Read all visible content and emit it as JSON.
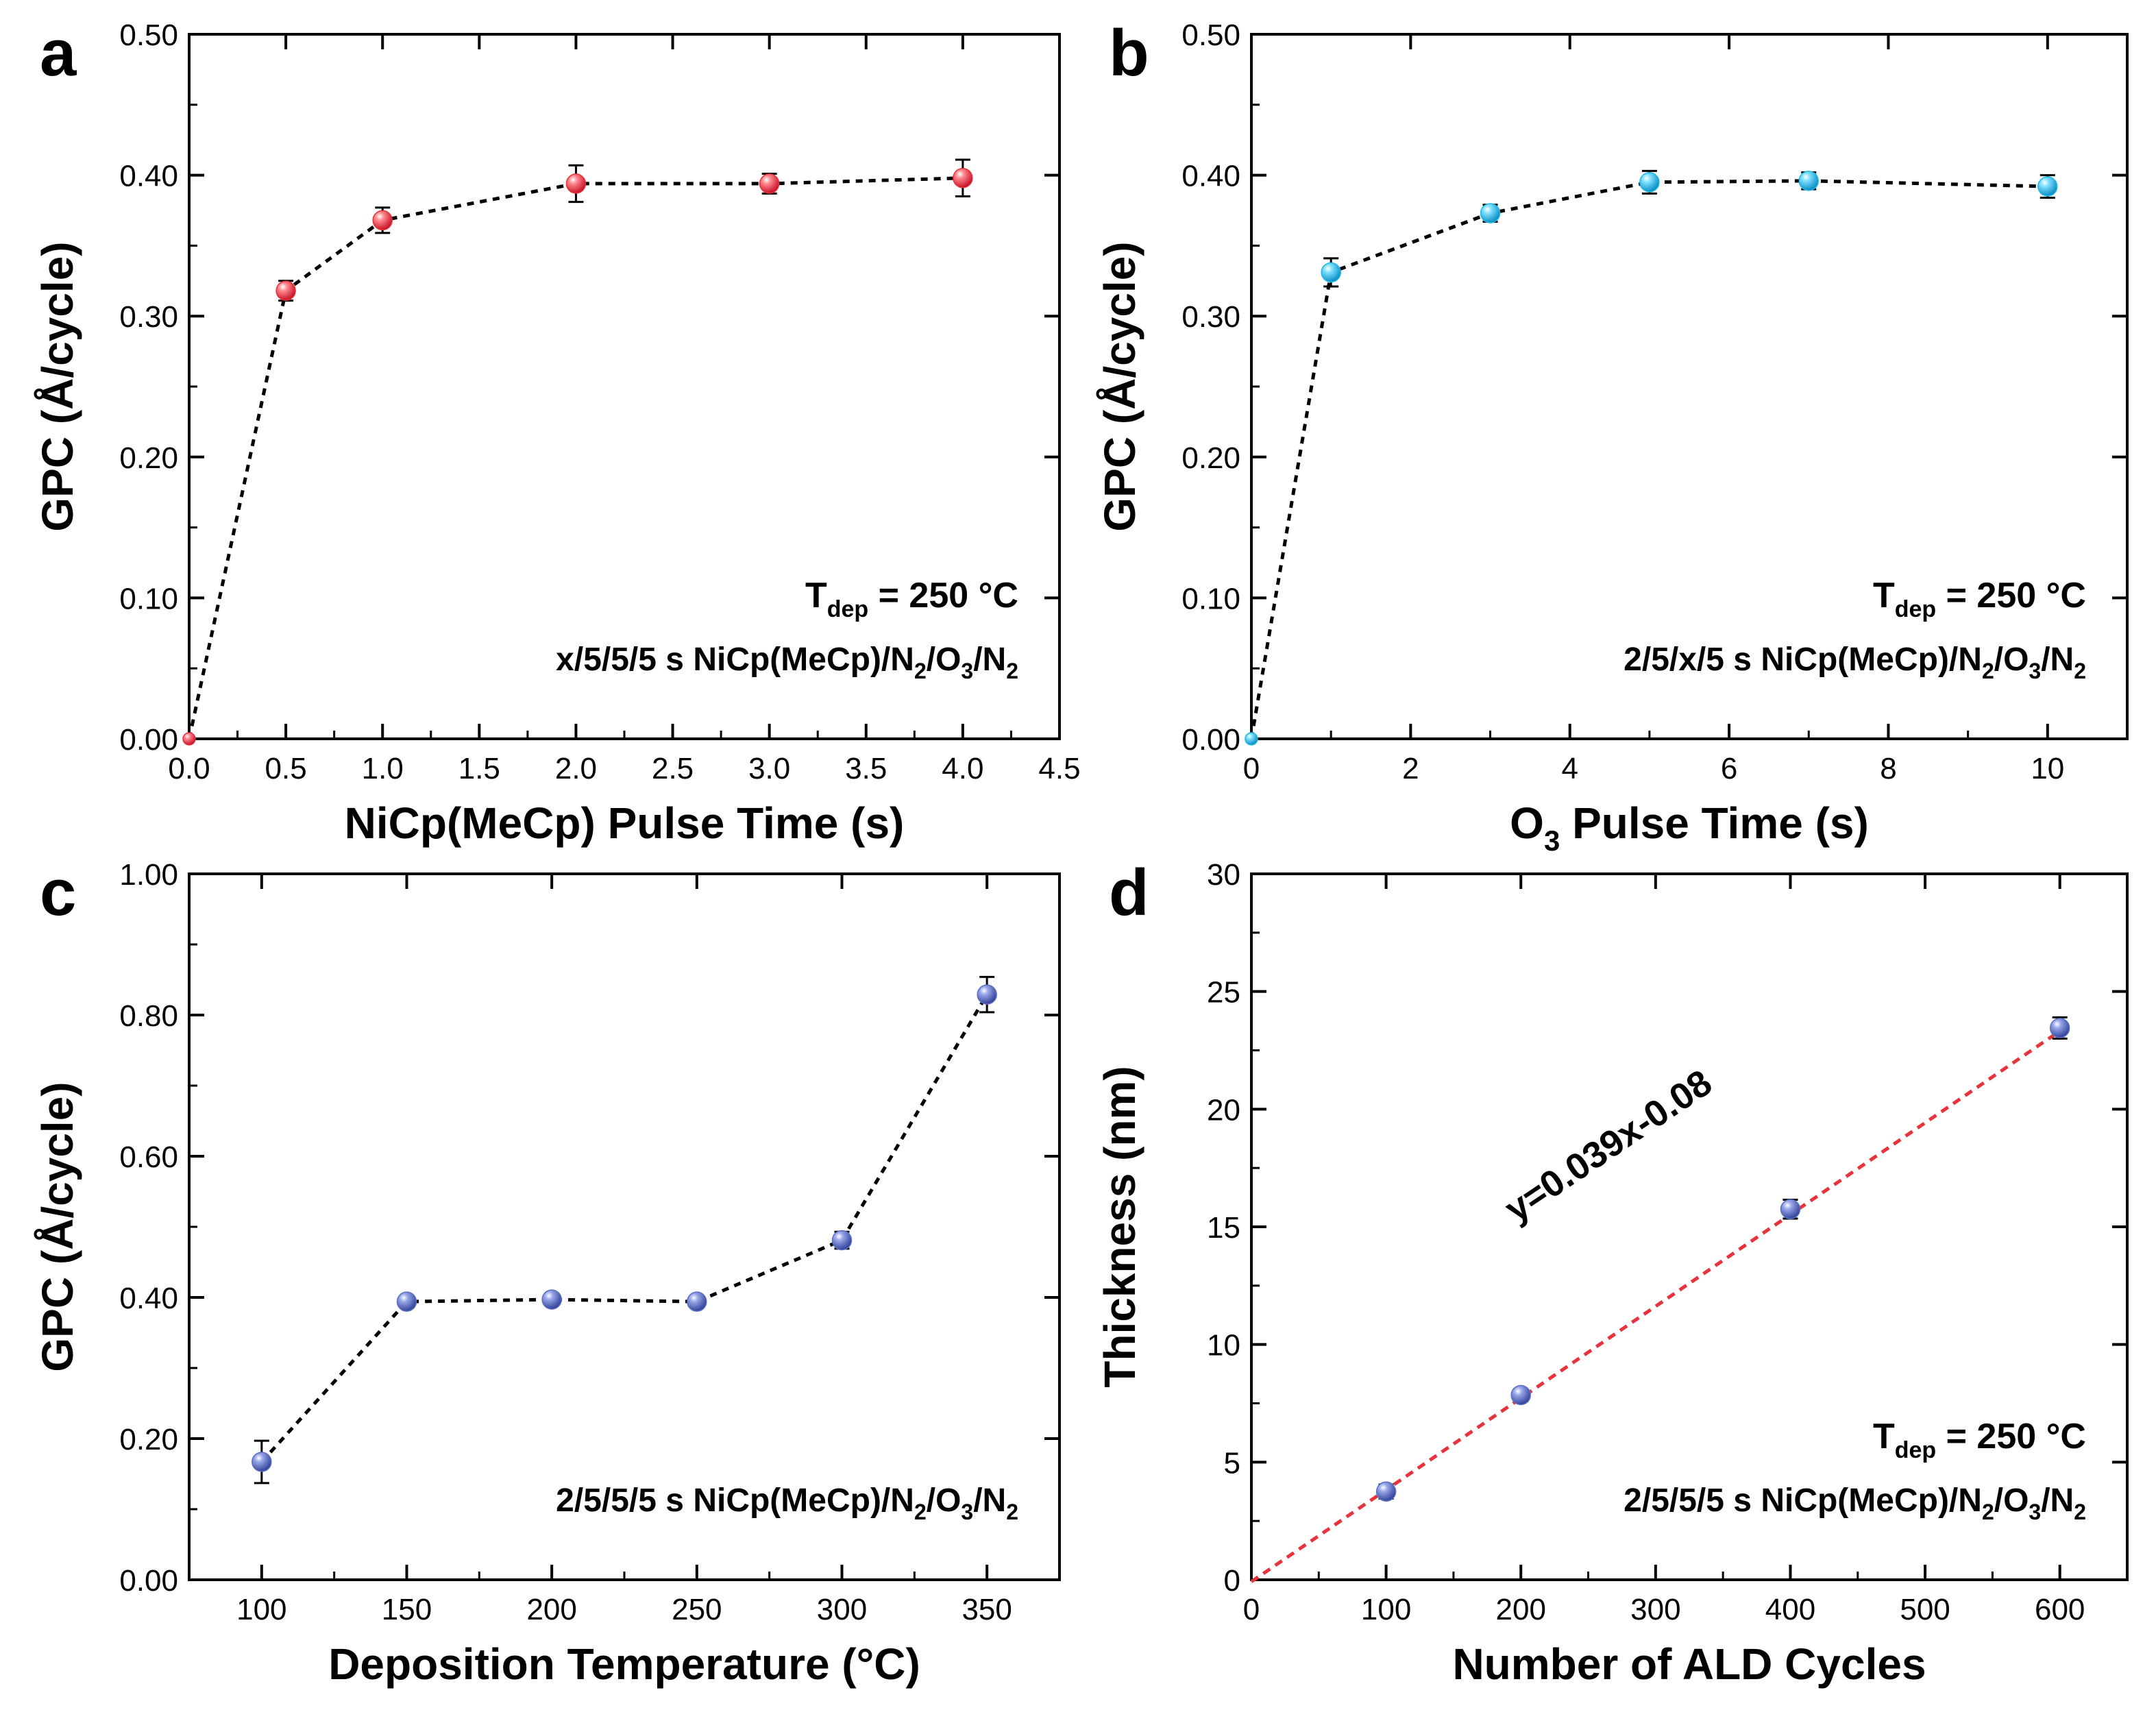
{
  "chart_data": [
    {
      "panel": "a",
      "type": "scatter",
      "connected": "dotted-line",
      "x": [
        0.0,
        0.5,
        1.0,
        2.0,
        3.0,
        4.0
      ],
      "y": [
        0.0,
        0.318,
        0.368,
        0.394,
        0.394,
        0.398
      ],
      "yerr": [
        0,
        0.007,
        0.009,
        0.013,
        0.007,
        0.013
      ],
      "xlim": [
        0.0,
        4.5
      ],
      "ylim": [
        0.0,
        0.5
      ],
      "xticks": [
        0.0,
        0.5,
        1.0,
        1.5,
        2.0,
        2.5,
        3.0,
        3.5,
        4.0,
        4.5
      ],
      "xtick_labels": [
        "0.0",
        "0.5",
        "1.0",
        "1.5",
        "2.0",
        "2.5",
        "3.0",
        "3.5",
        "4.0",
        "4.5"
      ],
      "yticks": [
        0.0,
        0.1,
        0.2,
        0.3,
        0.4,
        0.5
      ],
      "ytick_labels": [
        "0.00",
        "0.10",
        "0.20",
        "0.30",
        "0.40",
        "0.50"
      ],
      "xlabel": "NiCp(MeCp) Pulse Time (s)",
      "ylabel": "GPC (Å/cycle)",
      "annotation_line1": {
        "main": "T",
        "sub": "dep",
        "rest": " = 250 °C"
      },
      "annotation_line2": {
        "a": "x/5/5/5 s NiCp(MeCp)/N",
        "s1": "2",
        "b": "/O",
        "s2": "3",
        "c": "/N",
        "s3": "2"
      },
      "marker_color": "#e8323c",
      "line_color": "#000000"
    },
    {
      "panel": "b",
      "type": "scatter",
      "connected": "dotted-line",
      "x": [
        0,
        1,
        3,
        5,
        7,
        10
      ],
      "y": [
        0.0,
        0.331,
        0.373,
        0.395,
        0.396,
        0.392
      ],
      "yerr": [
        0,
        0.01,
        0.006,
        0.008,
        0.006,
        0.008
      ],
      "xlim": [
        0,
        11
      ],
      "ylim": [
        0.0,
        0.5
      ],
      "xticks": [
        0,
        2,
        4,
        6,
        8,
        10
      ],
      "xtick_labels": [
        "0",
        "2",
        "4",
        "6",
        "8",
        "10"
      ],
      "yticks": [
        0.0,
        0.1,
        0.2,
        0.3,
        0.4,
        0.5
      ],
      "ytick_labels": [
        "0.00",
        "0.10",
        "0.20",
        "0.30",
        "0.40",
        "0.50"
      ],
      "xlabel": {
        "a": "O",
        "sub": "3",
        "b": " Pulse Time (s)"
      },
      "ylabel": "GPC (Å/cycle)",
      "annotation_line1": {
        "main": "T",
        "sub": "dep",
        "rest": " = 250 °C"
      },
      "annotation_line2": {
        "a": "2/5/x/5 s NiCp(MeCp)/N",
        "s1": "2",
        "b": "/O",
        "s2": "3",
        "c": "/N",
        "s3": "2"
      },
      "marker_color": "#1fb8e6",
      "line_color": "#000000"
    },
    {
      "panel": "c",
      "type": "scatter",
      "connected": "dotted-line",
      "x": [
        100,
        150,
        200,
        250,
        300,
        350
      ],
      "y": [
        0.167,
        0.394,
        0.397,
        0.394,
        0.481,
        0.829
      ],
      "yerr": [
        0.03,
        0.006,
        0.006,
        0.006,
        0.012,
        0.025
      ],
      "xlim": [
        75,
        375
      ],
      "ylim": [
        0.0,
        1.0
      ],
      "xticks": [
        100,
        150,
        200,
        250,
        300,
        350
      ],
      "xtick_labels": [
        "100",
        "150",
        "200",
        "250",
        "300",
        "350"
      ],
      "yticks": [
        0.0,
        0.2,
        0.4,
        0.6,
        0.8,
        1.0
      ],
      "ytick_labels": [
        "0.00",
        "0.20",
        "0.40",
        "0.60",
        "0.80",
        "1.00"
      ],
      "xlabel": "Deposition Temperature (°C)",
      "ylabel": "GPC (Å/cycle)",
      "annotation_line1": null,
      "annotation_line2": {
        "a": "2/5/5/5 s NiCp(MeCp)/N",
        "s1": "2",
        "b": "/O",
        "s2": "3",
        "c": "/N",
        "s3": "2"
      },
      "marker_color": "#5b6fc4",
      "line_color": "#000000"
    },
    {
      "panel": "d",
      "type": "scatter",
      "connected": "linear-fit",
      "x": [
        100,
        200,
        400,
        600
      ],
      "y": [
        3.75,
        7.85,
        15.75,
        23.45
      ],
      "yerr": [
        0.3,
        0.25,
        0.4,
        0.45
      ],
      "fit": {
        "slope": 0.039,
        "intercept": -0.08,
        "label": "y=0.039x-0.08",
        "x_range": [
          0,
          600
        ]
      },
      "xlim": [
        0,
        650
      ],
      "ylim": [
        0,
        30
      ],
      "xticks": [
        0,
        100,
        200,
        300,
        400,
        500,
        600
      ],
      "xtick_labels": [
        "0",
        "100",
        "200",
        "300",
        "400",
        "500",
        "600"
      ],
      "yticks": [
        0,
        5,
        10,
        15,
        20,
        25,
        30
      ],
      "ytick_labels": [
        "0",
        "5",
        "10",
        "15",
        "20",
        "25",
        "30"
      ],
      "xlabel": "Number of ALD Cycles",
      "ylabel": "Thickness (nm)",
      "annotation_line1": {
        "main": "T",
        "sub": "dep",
        "rest": " = 250 °C"
      },
      "annotation_line2": {
        "a": "2/5/5/5 s NiCp(MeCp)/N",
        "s1": "2",
        "b": "/O",
        "s2": "3",
        "c": "/N",
        "s3": "2"
      },
      "marker_color": "#5b6fc4",
      "line_color": "#e8323c"
    }
  ]
}
